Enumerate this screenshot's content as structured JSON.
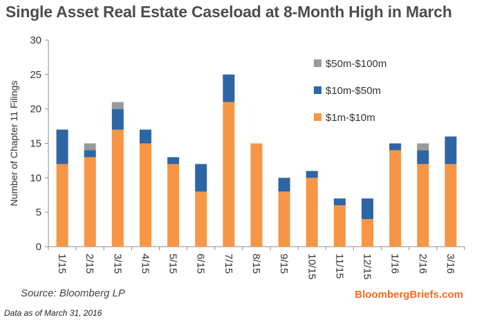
{
  "title": "Single Asset Real Estate Caseload at 8-Month High in March",
  "source": "Source: Bloomberg LP",
  "brand": "BloombergBriefs.com",
  "footnote": "Data as of March 31, 2016",
  "chart_data": {
    "type": "bar",
    "stacked": true,
    "categories": [
      "1/15",
      "2/15",
      "3/15",
      "4/15",
      "5/15",
      "6/15",
      "7/15",
      "8/15",
      "9/15",
      "10/15",
      "11/15",
      "12/15",
      "1/16",
      "2/16",
      "3/16"
    ],
    "series": [
      {
        "name": "$1m-$10m",
        "color": "#f79646",
        "values": [
          12,
          13,
          17,
          15,
          12,
          8,
          21,
          15,
          8,
          10,
          6,
          4,
          14,
          12,
          12
        ]
      },
      {
        "name": "$10m-$50m",
        "color": "#2e65a5",
        "values": [
          5,
          1,
          3,
          2,
          1,
          4,
          4,
          0,
          2,
          1,
          1,
          3,
          1,
          2,
          4
        ]
      },
      {
        "name": "$50m-$100m",
        "color": "#9a9a9a",
        "values": [
          0,
          1,
          1,
          0,
          0,
          0,
          0,
          0,
          0,
          0,
          0,
          0,
          0,
          1,
          0
        ]
      }
    ],
    "ylabel": "Number of Chapter 11 Filings",
    "xlabel": "",
    "ylim": [
      0,
      30
    ],
    "yticks": [
      0,
      5,
      10,
      15,
      20,
      25,
      30
    ],
    "grid": false,
    "legend_placement": "top-right",
    "legend_order": [
      "$50m-$100m",
      "$10m-$50m",
      "$1m-$10m"
    ]
  }
}
